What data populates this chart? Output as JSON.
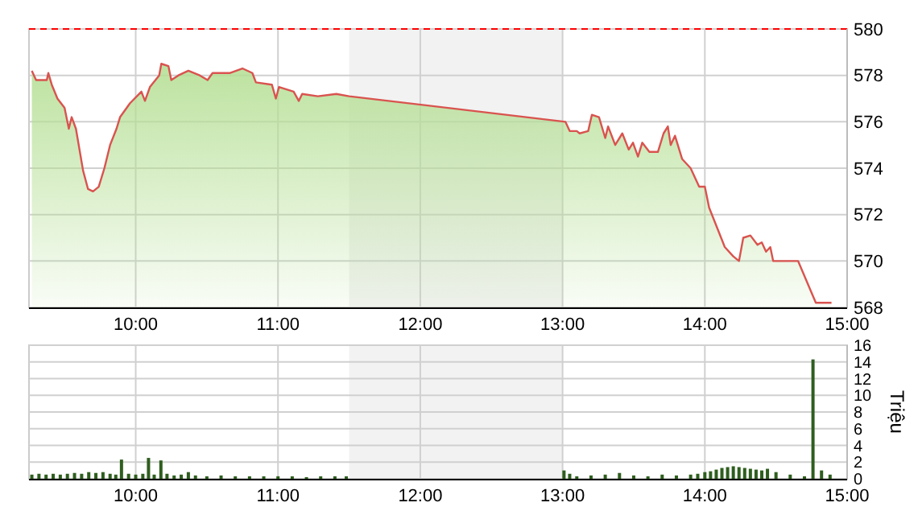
{
  "chart_data": [
    {
      "type": "area",
      "xlim": [
        9.25,
        15
      ],
      "ylim": [
        568,
        580
      ],
      "xticks": [
        {
          "value": 10,
          "label": "10:00"
        },
        {
          "value": 11,
          "label": "11:00"
        },
        {
          "value": 12,
          "label": "12:00"
        },
        {
          "value": 13,
          "label": "13:00"
        },
        {
          "value": 14,
          "label": "14:00"
        },
        {
          "value": 15,
          "label": "15:00"
        }
      ],
      "yticks": [
        568,
        570,
        572,
        574,
        576,
        578,
        580
      ],
      "grid": true,
      "ref_lines": [
        {
          "axis": "y",
          "value": 580,
          "color": "#ff0000",
          "line_style": "dashed"
        }
      ],
      "bands": [
        {
          "axis": "x",
          "from": 11.5,
          "to": 13,
          "color": "#f2f2f2"
        }
      ],
      "series": [
        {
          "color": "#d9534f",
          "x": [
            9.27,
            9.3,
            9.375,
            9.386,
            9.41,
            9.45,
            9.5,
            9.53,
            9.55,
            9.58,
            9.63,
            9.665,
            9.7,
            9.74,
            9.78,
            9.82,
            9.865,
            9.89,
            9.96,
            10.04,
            10.065,
            10.1,
            10.165,
            10.18,
            10.23,
            10.25,
            10.3,
            10.37,
            10.45,
            10.505,
            10.54,
            10.66,
            10.75,
            10.82,
            10.845,
            10.957,
            10.985,
            11.007,
            11.11,
            11.146,
            11.17,
            11.28,
            11.41,
            11.5,
            13.02,
            13.05,
            13.1,
            13.12,
            13.18,
            13.206,
            13.256,
            13.3,
            13.32,
            13.37,
            13.42,
            13.465,
            13.495,
            13.53,
            13.56,
            13.61,
            13.67,
            13.71,
            13.74,
            13.76,
            13.79,
            13.84,
            13.9,
            13.96,
            14.0,
            14.03,
            14.14,
            14.2,
            14.24,
            14.27,
            14.32,
            14.37,
            14.4,
            14.43,
            14.46,
            14.48,
            14.655,
            14.78,
            14.89
          ],
          "values": [
            578.2,
            577.8,
            577.8,
            578.1,
            577.6,
            577.0,
            576.6,
            575.7,
            576.2,
            575.7,
            573.9,
            573.1,
            573.0,
            573.2,
            574.0,
            575.0,
            575.7,
            576.2,
            576.8,
            577.3,
            576.9,
            577.5,
            578.0,
            578.5,
            578.4,
            577.8,
            578.0,
            578.2,
            578.0,
            577.8,
            578.1,
            578.1,
            578.3,
            578.1,
            577.7,
            577.6,
            577.0,
            577.5,
            577.3,
            576.9,
            577.2,
            577.1,
            577.2,
            577.1,
            576.0,
            575.6,
            575.6,
            575.5,
            575.6,
            576.3,
            576.2,
            575.3,
            575.8,
            575.0,
            575.5,
            574.8,
            575.1,
            574.5,
            575.1,
            574.7,
            574.7,
            575.5,
            575.8,
            575.0,
            575.4,
            574.4,
            574.0,
            573.2,
            573.2,
            572.3,
            570.6,
            570.2,
            570.0,
            571.0,
            571.1,
            570.7,
            570.8,
            570.4,
            570.6,
            570.0,
            570.0,
            568.2,
            568.2
          ]
        }
      ]
    },
    {
      "type": "bar",
      "xlim": [
        9.25,
        15
      ],
      "ylim": [
        0,
        16
      ],
      "ylabel": "Triệu",
      "xticks": [
        {
          "value": 10,
          "label": "10:00"
        },
        {
          "value": 11,
          "label": "11:00"
        },
        {
          "value": 12,
          "label": "12:00"
        },
        {
          "value": 13,
          "label": "13:00"
        },
        {
          "value": 14,
          "label": "14:00"
        },
        {
          "value": 15,
          "label": "15:00"
        }
      ],
      "yticks": [
        0,
        2,
        4,
        6,
        8,
        10,
        12,
        14,
        16
      ],
      "grid": true,
      "bands": [
        {
          "axis": "x",
          "from": 11.5,
          "to": 13,
          "color": "#f2f2f2"
        }
      ],
      "series": [
        {
          "color": "#2e5e1e",
          "x": [
            9.27,
            9.32,
            9.37,
            9.42,
            9.47,
            9.52,
            9.57,
            9.62,
            9.67,
            9.72,
            9.77,
            9.82,
            9.86,
            9.9,
            9.95,
            10.0,
            10.05,
            10.09,
            10.13,
            10.177,
            10.22,
            10.27,
            10.32,
            10.37,
            10.42,
            10.5,
            10.6,
            10.7,
            10.8,
            10.9,
            11.0,
            11.1,
            11.2,
            11.3,
            11.4,
            11.48,
            13.01,
            13.05,
            13.1,
            13.2,
            13.3,
            13.4,
            13.5,
            13.6,
            13.7,
            13.8,
            13.9,
            13.95,
            14.0,
            14.04,
            14.08,
            14.12,
            14.16,
            14.2,
            14.24,
            14.28,
            14.32,
            14.36,
            14.4,
            14.44,
            14.5,
            14.6,
            14.7,
            14.76,
            14.82,
            14.88
          ],
          "values": [
            0.5,
            0.6,
            0.5,
            0.6,
            0.5,
            0.6,
            0.7,
            0.6,
            0.8,
            0.7,
            0.8,
            0.6,
            0.5,
            2.3,
            0.6,
            0.5,
            0.6,
            2.5,
            0.5,
            2.2,
            0.6,
            0.4,
            0.5,
            0.8,
            0.4,
            0.3,
            0.4,
            0.3,
            0.3,
            0.3,
            0.3,
            0.3,
            0.2,
            0.3,
            0.3,
            0.3,
            1.0,
            0.6,
            0.3,
            0.4,
            0.5,
            0.7,
            0.4,
            0.3,
            0.5,
            0.4,
            0.5,
            0.6,
            0.8,
            0.9,
            1.1,
            1.3,
            1.4,
            1.5,
            1.4,
            1.3,
            1.2,
            1.1,
            1.0,
            1.2,
            0.8,
            0.5,
            0.3,
            14.3,
            1.0,
            0.5
          ]
        }
      ]
    }
  ]
}
